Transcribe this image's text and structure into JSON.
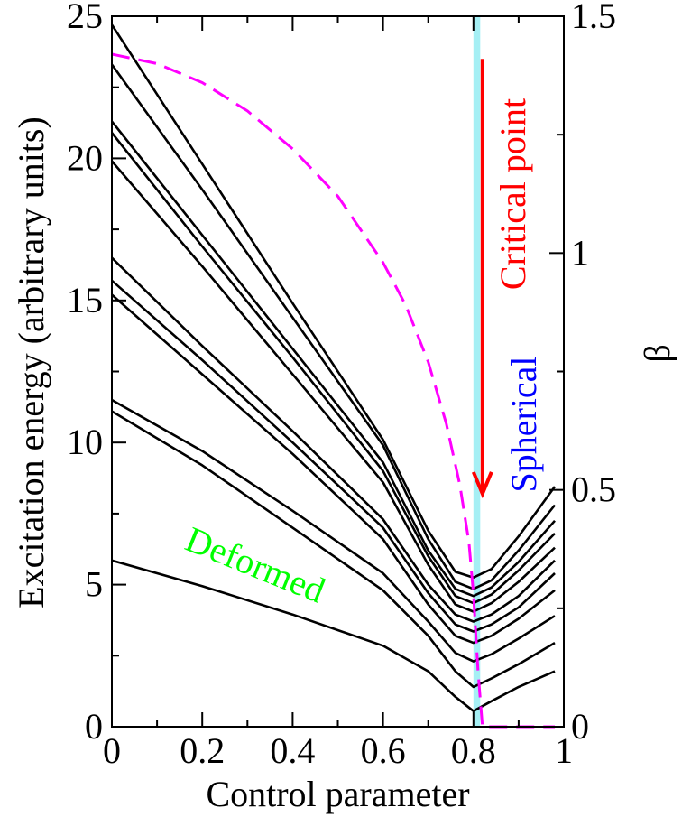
{
  "chart_data": {
    "type": "line",
    "title": "",
    "xlabel": "Control parameter",
    "ylabel": "Excitation energy (arbitrary units)",
    "ylabel_right": "β",
    "xlim": [
      0,
      1
    ],
    "ylim": [
      0,
      25
    ],
    "ylim_right": [
      0,
      1.5
    ],
    "x_ticks": [
      "0",
      "0.2",
      "0.4",
      "0.6",
      "0.8",
      "1"
    ],
    "y_ticks": [
      "0",
      "5",
      "10",
      "15",
      "20",
      "25"
    ],
    "y_ticks_right": [
      "0",
      "0.5",
      "1",
      "1.5"
    ],
    "grid": false,
    "series": [
      {
        "color": "#000000",
        "x": [
          0,
          0.2,
          0.4,
          0.6,
          0.7,
          0.76,
          0.8,
          0.84,
          0.9,
          0.98
        ],
        "y": [
          5.85,
          4.95,
          3.95,
          2.85,
          1.95,
          1.05,
          0.55,
          0.9,
          1.4,
          1.95
        ]
      },
      {
        "color": "#000000",
        "x": [
          0,
          0.2,
          0.4,
          0.6,
          0.7,
          0.76,
          0.8,
          0.84,
          0.9,
          0.98
        ],
        "y": [
          11.1,
          9.2,
          7.0,
          4.8,
          3.2,
          1.95,
          1.4,
          1.7,
          2.2,
          2.95
        ]
      },
      {
        "color": "#000000",
        "x": [
          0,
          0.2,
          0.4,
          0.6,
          0.7,
          0.76,
          0.8,
          0.84,
          0.9,
          0.98
        ],
        "y": [
          11.5,
          9.7,
          7.6,
          5.4,
          3.7,
          2.6,
          2.3,
          2.55,
          3.1,
          3.9
        ]
      },
      {
        "color": "#000000",
        "x": [
          0,
          0.2,
          0.4,
          0.6,
          0.7,
          0.76,
          0.8,
          0.84,
          0.9,
          0.98
        ],
        "y": [
          15.2,
          12.4,
          9.6,
          6.6,
          4.3,
          3.2,
          2.95,
          3.2,
          3.8,
          4.8
        ]
      },
      {
        "color": "#000000",
        "x": [
          0,
          0.2,
          0.4,
          0.6,
          0.7,
          0.76,
          0.8,
          0.84,
          0.9,
          0.98
        ],
        "y": [
          15.7,
          12.9,
          10.0,
          7.0,
          4.7,
          3.6,
          3.35,
          3.6,
          4.2,
          5.4
        ]
      },
      {
        "color": "#000000",
        "x": [
          0,
          0.2,
          0.4,
          0.6,
          0.7,
          0.76,
          0.8,
          0.84,
          0.9,
          0.98
        ],
        "y": [
          16.5,
          13.4,
          10.4,
          7.3,
          5.0,
          3.95,
          3.7,
          3.95,
          4.6,
          5.85
        ]
      },
      {
        "color": "#000000",
        "x": [
          0,
          0.2,
          0.4,
          0.6,
          0.7,
          0.76,
          0.8,
          0.84,
          0.9,
          0.98
        ],
        "y": [
          19.9,
          16.2,
          12.4,
          8.6,
          5.7,
          4.3,
          4.05,
          4.35,
          5.1,
          6.3
        ]
      },
      {
        "color": "#000000",
        "x": [
          0,
          0.2,
          0.4,
          0.6,
          0.7,
          0.76,
          0.8,
          0.84,
          0.9,
          0.98
        ],
        "y": [
          20.9,
          16.9,
          13.0,
          9.0,
          6.0,
          4.6,
          4.35,
          4.65,
          5.5,
          6.8
        ]
      },
      {
        "color": "#000000",
        "x": [
          0,
          0.2,
          0.4,
          0.6,
          0.7,
          0.76,
          0.8,
          0.84,
          0.9,
          0.98
        ],
        "y": [
          21.3,
          17.3,
          13.3,
          9.3,
          6.2,
          4.85,
          4.6,
          4.9,
          5.8,
          7.25
        ]
      },
      {
        "color": "#000000",
        "x": [
          0,
          0.2,
          0.4,
          0.6,
          0.7,
          0.76,
          0.8,
          0.84,
          0.9,
          0.98
        ],
        "y": [
          23.3,
          18.9,
          14.4,
          9.9,
          6.6,
          5.1,
          4.85,
          5.15,
          6.2,
          7.8
        ]
      },
      {
        "color": "#000000",
        "x": [
          0,
          0.2,
          0.4,
          0.6,
          0.7,
          0.76,
          0.8,
          0.84,
          0.9,
          0.98
        ],
        "y": [
          24.7,
          19.8,
          14.9,
          10.1,
          6.9,
          5.45,
          5.25,
          5.55,
          6.7,
          8.45
        ]
      }
    ],
    "series_right": [
      {
        "color": "#ff00ff",
        "style": "dashed",
        "x": [
          0,
          0.1,
          0.2,
          0.3,
          0.4,
          0.5,
          0.6,
          0.65,
          0.7,
          0.74,
          0.77,
          0.79,
          0.8,
          0.81,
          0.82,
          0.84,
          0.9,
          0.98
        ],
        "y": [
          1.42,
          1.4,
          1.36,
          1.3,
          1.22,
          1.12,
          0.98,
          0.89,
          0.77,
          0.64,
          0.51,
          0.39,
          0.28,
          0.12,
          0,
          0,
          0,
          0
        ]
      }
    ],
    "band": {
      "x_from": 0.8,
      "x_to": 0.815,
      "color": "#7fe8f0"
    },
    "annotations": [
      {
        "text": "Critical point",
        "color": "#ff0000",
        "orientation": "vertical"
      },
      {
        "text": "Spherical",
        "color": "#0000ff",
        "orientation": "vertical"
      },
      {
        "text": "Deformed",
        "color": "#00ff00",
        "orientation": "tilted"
      }
    ],
    "arrow": {
      "color": "#ff0000",
      "x": 0.82,
      "y_from": 23.5,
      "y_to": 8.2
    }
  }
}
